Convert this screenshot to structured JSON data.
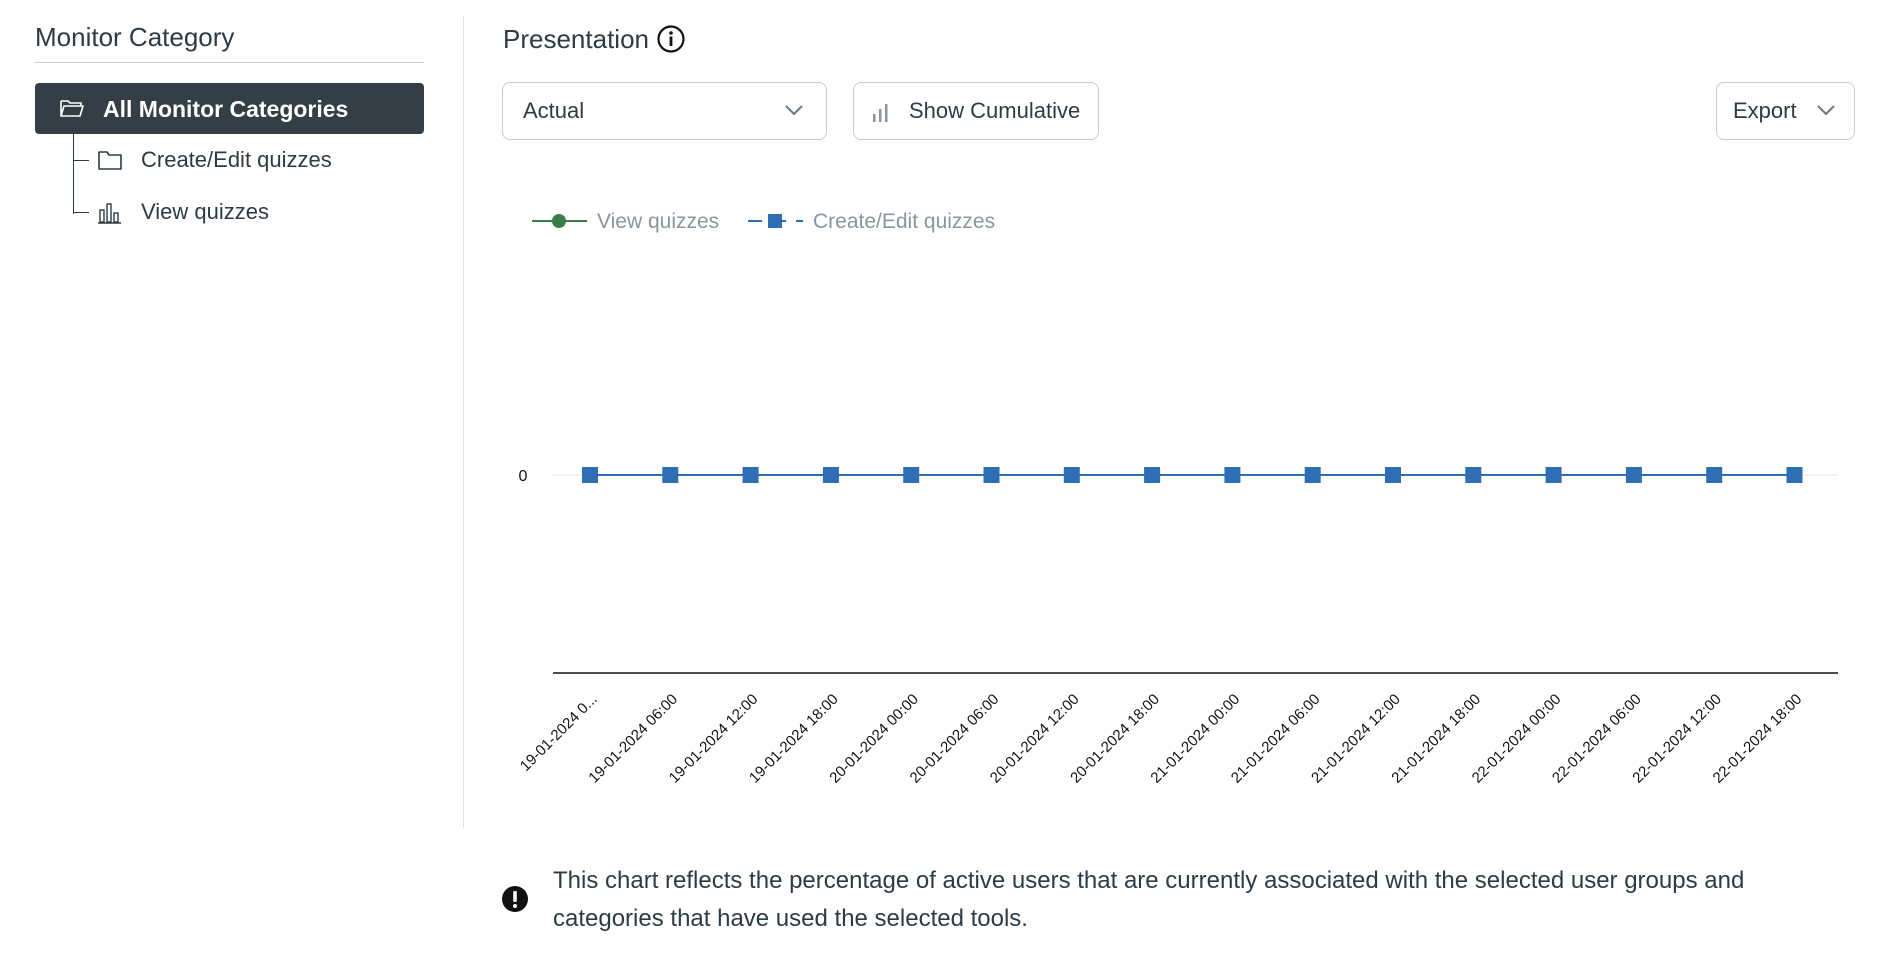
{
  "sidebar": {
    "title": "Monitor Category",
    "all_categories": {
      "label": "All Monitor Categories",
      "icon": "folder-open-icon"
    },
    "items": [
      {
        "label": "Create/Edit quizzes",
        "icon": "folder-icon"
      },
      {
        "label": "View quizzes",
        "icon": "bar-chart-icon"
      }
    ]
  },
  "main": {
    "title": "Presentation",
    "info_icon": "info-icon",
    "presentation_select": {
      "value": "Actual"
    },
    "cumulative_button": {
      "label": "Show Cumulative",
      "icon": "bar-chart-icon"
    },
    "export_button": {
      "label": "Export"
    },
    "note": "This chart reflects the percentage of active users that are currently associated with the selected user groups and categories that have used the selected tools."
  },
  "chart_data": {
    "type": "line",
    "legend_position": "top-left",
    "grid": false,
    "categories": [
      "19-01-2024 0...",
      "19-01-2024 06:00",
      "19-01-2024 12:00",
      "19-01-2024 18:00",
      "20-01-2024 00:00",
      "20-01-2024 06:00",
      "20-01-2024 12:00",
      "20-01-2024 18:00",
      "21-01-2024 00:00",
      "21-01-2024 06:00",
      "21-01-2024 12:00",
      "21-01-2024 18:00",
      "22-01-2024 00:00",
      "22-01-2024 06:00",
      "22-01-2024 12:00",
      "22-01-2024 18:00"
    ],
    "y_ticks": [
      0
    ],
    "series": [
      {
        "name": "View quizzes",
        "color": "#3a7d4b",
        "marker": "circle",
        "line": "solid",
        "values": [
          0,
          0,
          0,
          0,
          0,
          0,
          0,
          0,
          0,
          0,
          0,
          0,
          0,
          0,
          0,
          0
        ]
      },
      {
        "name": "Create/Edit quizzes",
        "color": "#2f6db5",
        "marker": "square",
        "line": "dashed",
        "values": [
          0,
          0,
          0,
          0,
          0,
          0,
          0,
          0,
          0,
          0,
          0,
          0,
          0,
          0,
          0,
          0
        ]
      }
    ]
  }
}
